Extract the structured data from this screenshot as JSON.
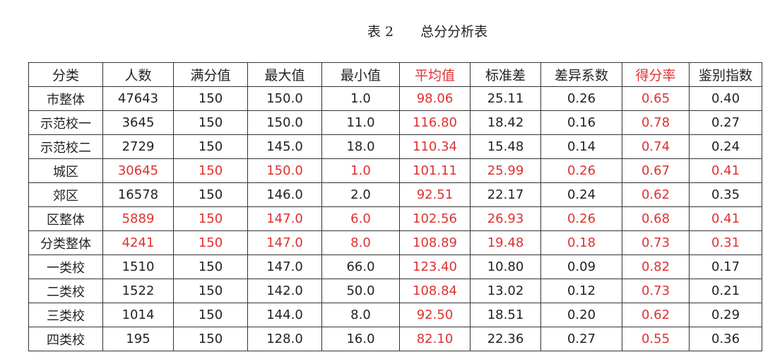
{
  "document": {
    "table_label": "表 2",
    "title": "总分分析表",
    "table": {
      "header": [
        "分类",
        "人数",
        "满分值",
        "最大值",
        "最小值",
        "平均值",
        "标准差",
        "差异系数",
        "得分率",
        "鉴别指数"
      ],
      "rows": [
        [
          "市整体",
          "47643",
          "150",
          "150.0",
          "1.0",
          "98.06",
          "25.11",
          "0.26",
          "0.65",
          "0.40"
        ],
        [
          "示范校一",
          "3645",
          "150",
          "150.0",
          "11.0",
          "116.80",
          "18.42",
          "0.16",
          "0.78",
          "0.27"
        ],
        [
          "示范校二",
          "2729",
          "150",
          "145.0",
          "18.0",
          "110.34",
          "15.48",
          "0.14",
          "0.74",
          "0.24"
        ],
        [
          "城区",
          "30645",
          "150",
          "150.0",
          "1.0",
          "101.11",
          "25.99",
          "0.26",
          "0.67",
          "0.41"
        ],
        [
          "郊区",
          "16578",
          "150",
          "146.0",
          "2.0",
          "92.51",
          "22.17",
          "0.24",
          "0.62",
          "0.35"
        ],
        [
          "区整体",
          "5889",
          "150",
          "147.0",
          "6.0",
          "102.56",
          "26.93",
          "0.26",
          "0.68",
          "0.41"
        ],
        [
          "分类整体",
          "4241",
          "150",
          "147.0",
          "8.0",
          "108.89",
          "19.48",
          "0.18",
          "0.73",
          "0.31"
        ],
        [
          "一类校",
          "1510",
          "150",
          "147.0",
          "66.0",
          "123.40",
          "10.80",
          "0.09",
          "0.82",
          "0.17"
        ],
        [
          "二类校",
          "1522",
          "150",
          "142.0",
          "50.0",
          "108.84",
          "13.02",
          "0.12",
          "0.73",
          "0.21"
        ],
        [
          "三类校",
          "1014",
          "150",
          "144.0",
          "8.0",
          "92.50",
          "18.51",
          "0.20",
          "0.62",
          "0.29"
        ],
        [
          "四类校",
          "195",
          "150",
          "128.0",
          "16.0",
          "82.10",
          "22.36",
          "0.27",
          "0.55",
          "0.36"
        ]
      ]
    }
  }
}
